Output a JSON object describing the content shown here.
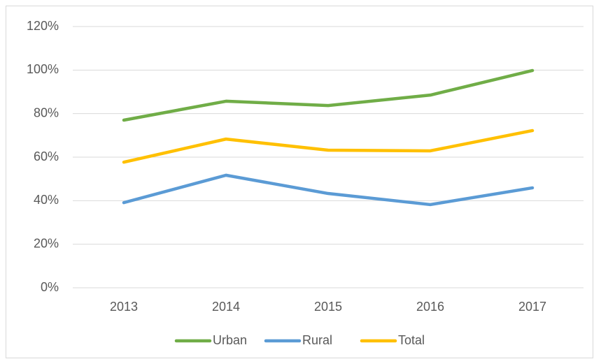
{
  "chart_data": {
    "type": "line",
    "categories": [
      "2013",
      "2014",
      "2015",
      "2016",
      "2017"
    ],
    "series": [
      {
        "name": "Urban",
        "color": "#70ad47",
        "values": [
          77,
          85.7,
          83.7,
          88.5,
          99.8
        ]
      },
      {
        "name": "Rural",
        "color": "#5b9bd5",
        "values": [
          39.1,
          51.7,
          43.3,
          38.2,
          45.9
        ]
      },
      {
        "name": "Total",
        "color": "#ffc000",
        "values": [
          57.7,
          68.3,
          63.2,
          62.9,
          72.2
        ]
      }
    ],
    "ylim": [
      0,
      120
    ],
    "yticks": [
      {
        "value": 0,
        "label": "0%"
      },
      {
        "value": 20,
        "label": "20%"
      },
      {
        "value": 40,
        "label": "40%"
      },
      {
        "value": 60,
        "label": "60%"
      },
      {
        "value": 80,
        "label": "80%"
      },
      {
        "value": 100,
        "label": "100%"
      },
      {
        "value": 120,
        "label": "120%"
      }
    ],
    "grid": true,
    "legend": "bottom"
  }
}
